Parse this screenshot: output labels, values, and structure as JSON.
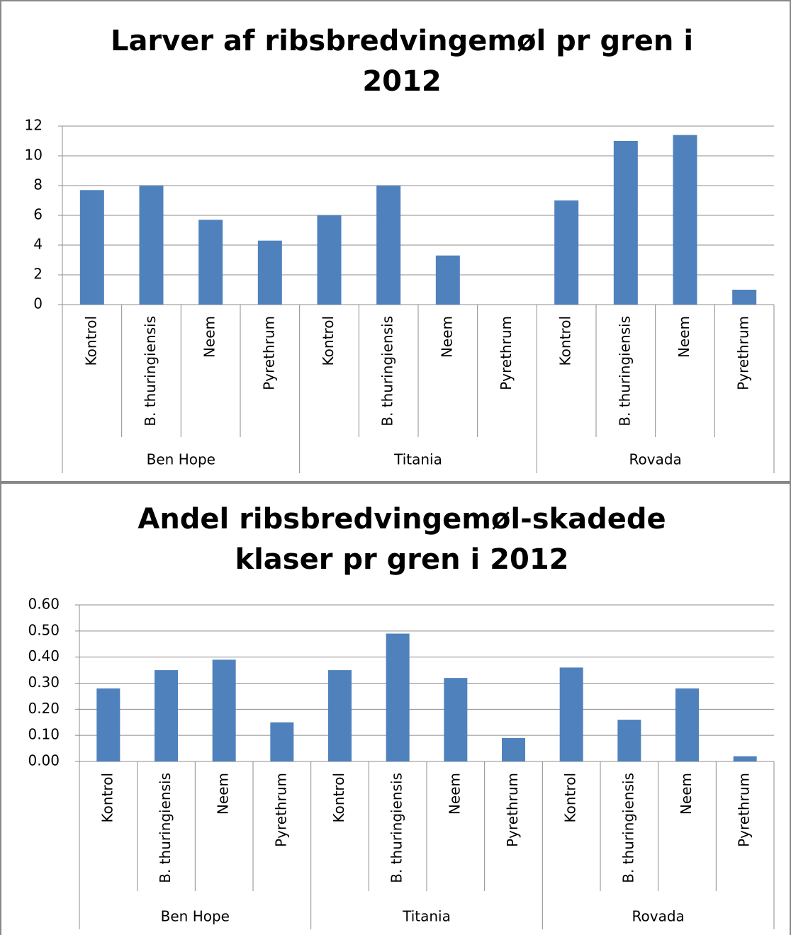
{
  "chart_data": [
    {
      "type": "bar",
      "title": [
        "Larver af ribsbredvingemøl pr gren i",
        "2012"
      ],
      "categories": [
        "Kontrol",
        "B. thuringiensis",
        "Neem",
        "Pyrethrum",
        "Kontrol",
        "B. thuringiensis",
        "Neem",
        "Pyrethrum",
        "Kontrol",
        "B. thuringiensis",
        "Neem",
        "Pyrethrum"
      ],
      "groups": [
        "Ben Hope",
        "Titania",
        "Rovada"
      ],
      "values": [
        7.7,
        8,
        5.7,
        4.3,
        6,
        8,
        3.3,
        0,
        7,
        11,
        11.4,
        1
      ],
      "color": "#4f81bd",
      "ylim": [
        0,
        12
      ],
      "yticks": [
        0,
        2,
        4,
        6,
        8,
        10,
        12
      ],
      "grid": true
    },
    {
      "type": "bar",
      "title": [
        "Andel ribsbredvingemøl-skadede",
        "klaser pr gren i 2012"
      ],
      "categories": [
        "Kontrol",
        "B. thuringiensis",
        "Neem",
        "Pyrethrum",
        "Kontrol",
        "B. thuringiensis",
        "Neem",
        "Pyrethrum",
        "Kontrol",
        "B. thuringiensis",
        "Neem",
        "Pyrethrum"
      ],
      "groups": [
        "Ben Hope",
        "Titania",
        "Rovada"
      ],
      "values": [
        0.28,
        0.35,
        0.39,
        0.15,
        0.35,
        0.49,
        0.32,
        0.09,
        0.36,
        0.16,
        0.28,
        0.02
      ],
      "color": "#4f81bd",
      "ylim": [
        0,
        0.6
      ],
      "yticks": [
        {
          "value": 0,
          "label": "0.00"
        },
        {
          "value": 0.1,
          "label": "0.10"
        },
        {
          "value": 0.2,
          "label": "0.20"
        },
        {
          "value": 0.3,
          "label": "0.30"
        },
        {
          "value": 0.4,
          "label": "0.40"
        },
        {
          "value": 0.5,
          "label": "0.50"
        },
        {
          "value": 0.6,
          "label": "0.60"
        }
      ],
      "grid": true
    }
  ]
}
